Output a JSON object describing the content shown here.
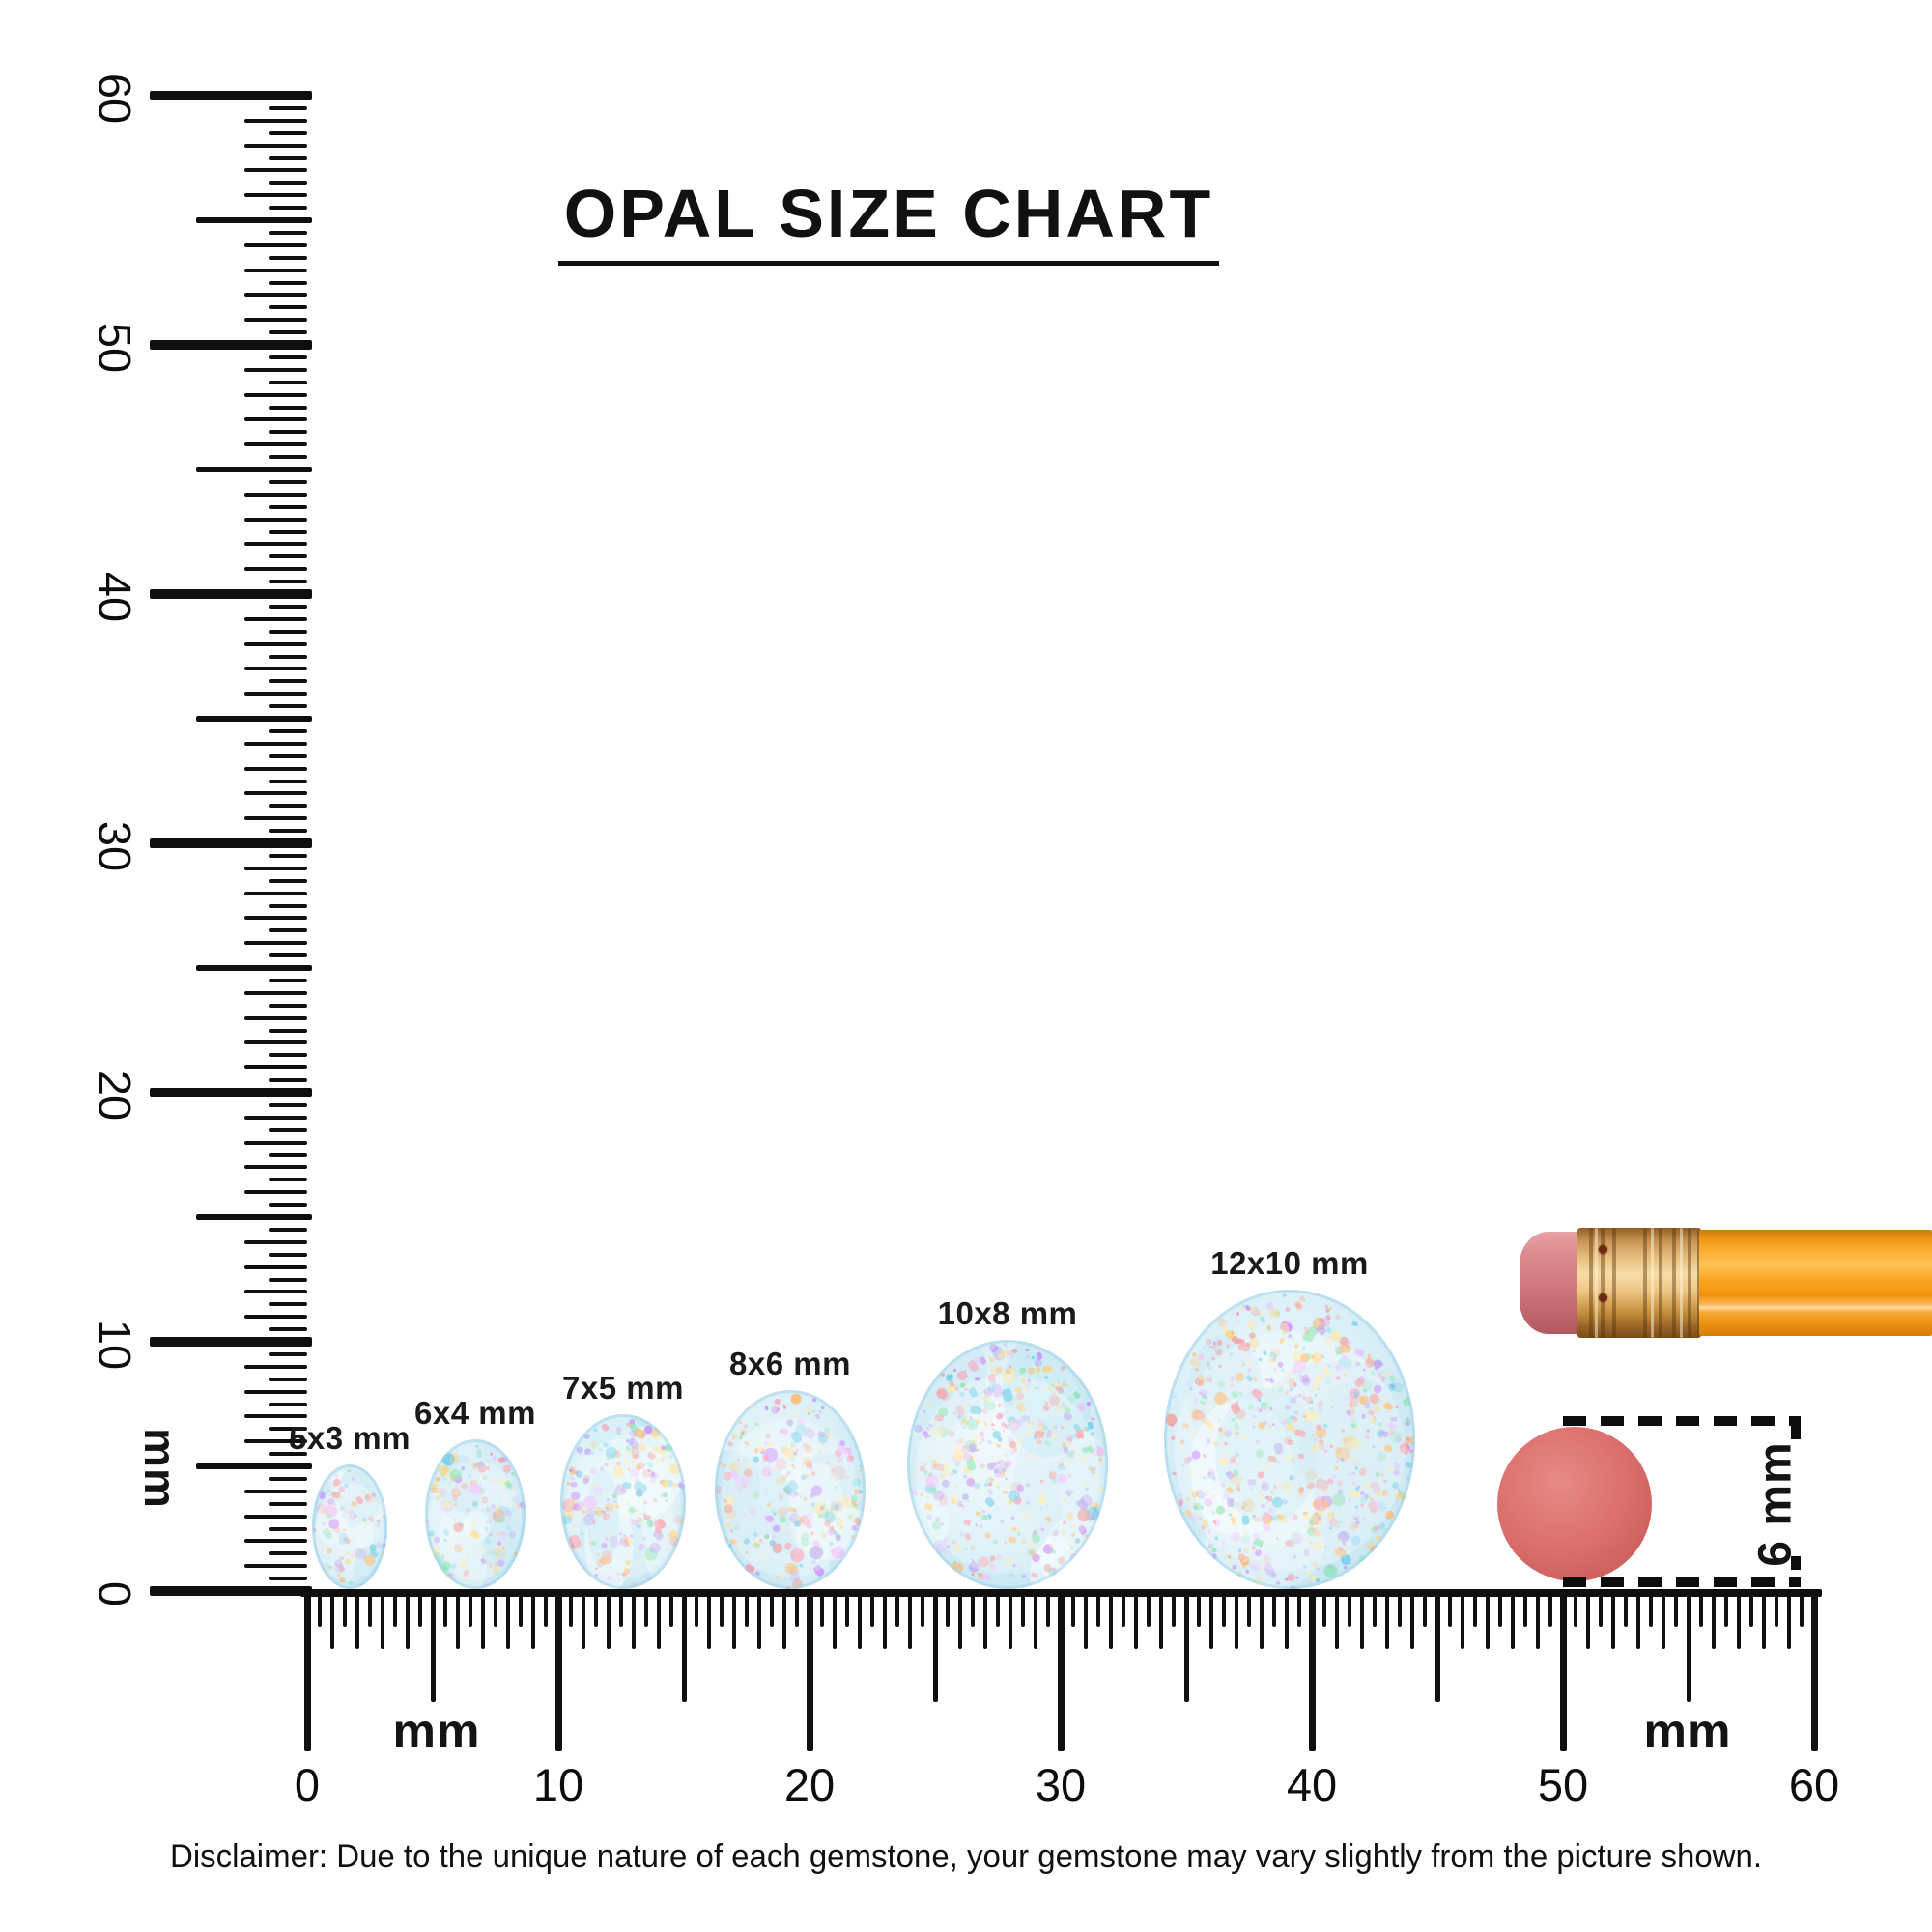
{
  "title": "OPAL SIZE CHART",
  "disclaimer": "Disclaimer: Due to the unique nature of each gemstone, your gemstone may vary slightly from the picture shown.",
  "rulers": {
    "horizontal": {
      "range_mm": [
        0,
        60
      ],
      "tick_step_mm": 0.5,
      "labels": [
        "0",
        "10",
        "20",
        "30",
        "40",
        "50",
        "60"
      ],
      "unit_labels": [
        "mm",
        "mm"
      ]
    },
    "vertical": {
      "range_mm": [
        0,
        60
      ],
      "tick_step_mm": 0.5,
      "labels": [
        "0",
        "10",
        "20",
        "30",
        "40",
        "50",
        "60"
      ],
      "unit_label": "mm"
    }
  },
  "opals": [
    {
      "label": "5x3 mm",
      "length_mm": 5,
      "width_mm": 3
    },
    {
      "label": "6x4 mm",
      "length_mm": 6,
      "width_mm": 4
    },
    {
      "label": "7x5 mm",
      "length_mm": 7,
      "width_mm": 5
    },
    {
      "label": "8x6 mm",
      "length_mm": 8,
      "width_mm": 6
    },
    {
      "label": "10x8 mm",
      "length_mm": 10,
      "width_mm": 8
    },
    {
      "label": "12x10 mm",
      "length_mm": 12,
      "width_mm": 10
    }
  ],
  "comparison": {
    "eraser_circle_label": "6 mm",
    "eraser_circle_diameter_mm": 6
  },
  "colors": {
    "ink": "#0f0f0f",
    "opal_base": "#d8eef6",
    "opal_palette": [
      "#ffb25e",
      "#ffd166",
      "#ff8fa3",
      "#c77dff",
      "#7de3a5",
      "#5bc8e8",
      "#f4978e",
      "#b79ced",
      "#ffe8a3",
      "#f2b8ff"
    ],
    "eraser_circle": "#d96c69",
    "pencil_body": "#f9a01f",
    "pencil_ferrule": "#e9c183",
    "pencil_eraser": "#cf777d"
  }
}
